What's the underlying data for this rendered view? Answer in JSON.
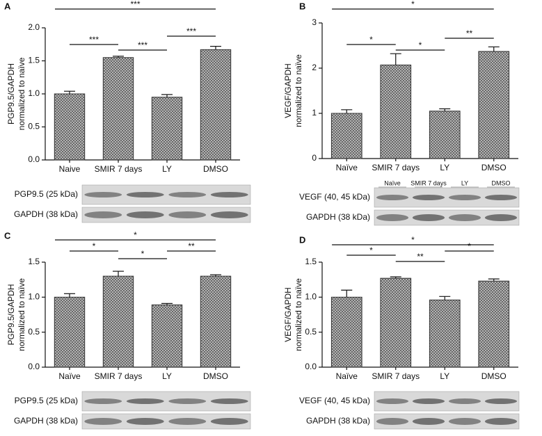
{
  "chart_data": [
    {
      "type": "bar",
      "panel": "A",
      "y_label": [
        "PGP9.5/GAPDH",
        "normalized to naïve"
      ],
      "categories": [
        "Naive",
        "SMIR 7 days",
        "LY",
        "DMSO"
      ],
      "values": [
        1.0,
        1.55,
        0.95,
        1.67
      ],
      "errors": [
        0.04,
        0.02,
        0.04,
        0.05
      ],
      "ylim": [
        0,
        2
      ],
      "yticks": [
        {
          "value": 0,
          "label": "0.0"
        },
        {
          "value": 0.5,
          "label": "0.5"
        },
        {
          "value": 1,
          "label": "1.0"
        },
        {
          "value": 1.5,
          "label": "1.5"
        },
        {
          "value": 2,
          "label": "2.0"
        }
      ],
      "significance": [
        "***",
        "***",
        "***",
        "***"
      ],
      "blot_labels": [
        "PGP9.5 (25 kDa)",
        "GAPDH (38 kDa)"
      ]
    },
    {
      "type": "bar",
      "panel": "B",
      "y_label": [
        "VEGF/GAPDH",
        "normalized to naïve"
      ],
      "categories": [
        "Naïve",
        "SMIR 7 days",
        "LY",
        "DMSO"
      ],
      "values": [
        1.0,
        2.07,
        1.05,
        2.37
      ],
      "errors": [
        0.08,
        0.25,
        0.05,
        0.1
      ],
      "ylim": [
        0,
        3
      ],
      "yticks": [
        0,
        1,
        2,
        3
      ],
      "significance": [
        "*",
        "*",
        "*",
        "**"
      ],
      "blot_labels": [
        "VEGF (40, 45 kDa)",
        "GAPDH (38 kDa)"
      ],
      "lane_labels": [
        "Naïve",
        "SMIR 7 days",
        "LY",
        "DMSO"
      ]
    },
    {
      "type": "bar",
      "panel": "C",
      "y_label": [
        "PGP9.5/GAPDH",
        "normalized to naïve"
      ],
      "categories": [
        "Naïve",
        "SMIR 7 days",
        "LY",
        "DMSO"
      ],
      "values": [
        1.0,
        1.3,
        0.89,
        1.3
      ],
      "errors": [
        0.05,
        0.07,
        0.02,
        0.02
      ],
      "ylim": [
        0,
        1.5
      ],
      "yticks": [
        {
          "value": 0,
          "label": "0.0"
        },
        {
          "value": 0.5,
          "label": "0.5"
        },
        {
          "value": 1,
          "label": "1.0"
        },
        {
          "value": 1.5,
          "label": "1.5"
        }
      ],
      "significance": [
        "*",
        "*",
        "*",
        "**"
      ],
      "blot_labels": [
        "PGP9.5 (25 kDa)",
        "GAPDH (38 kDa)"
      ]
    },
    {
      "type": "bar",
      "panel": "D",
      "y_label": [
        "VEGF/GAPDH",
        "normalized to naïve"
      ],
      "categories": [
        "Naïve",
        "SMIR 7 days",
        "LY",
        "DMSO"
      ],
      "values": [
        1.0,
        1.27,
        0.96,
        1.23
      ],
      "errors": [
        0.1,
        0.02,
        0.05,
        0.03
      ],
      "ylim": [
        0,
        1.5
      ],
      "yticks": [
        {
          "value": 0,
          "label": "0.0"
        },
        {
          "value": 0.5,
          "label": "0.5"
        },
        {
          "value": 1,
          "label": "1.0"
        },
        {
          "value": 1.5,
          "label": "1.5"
        }
      ],
      "significance": [
        "*",
        "*",
        "**",
        "*"
      ],
      "blot_labels": [
        "VEGF (40, 45 kDa)",
        "GAPDH (38 kDa)"
      ]
    }
  ]
}
